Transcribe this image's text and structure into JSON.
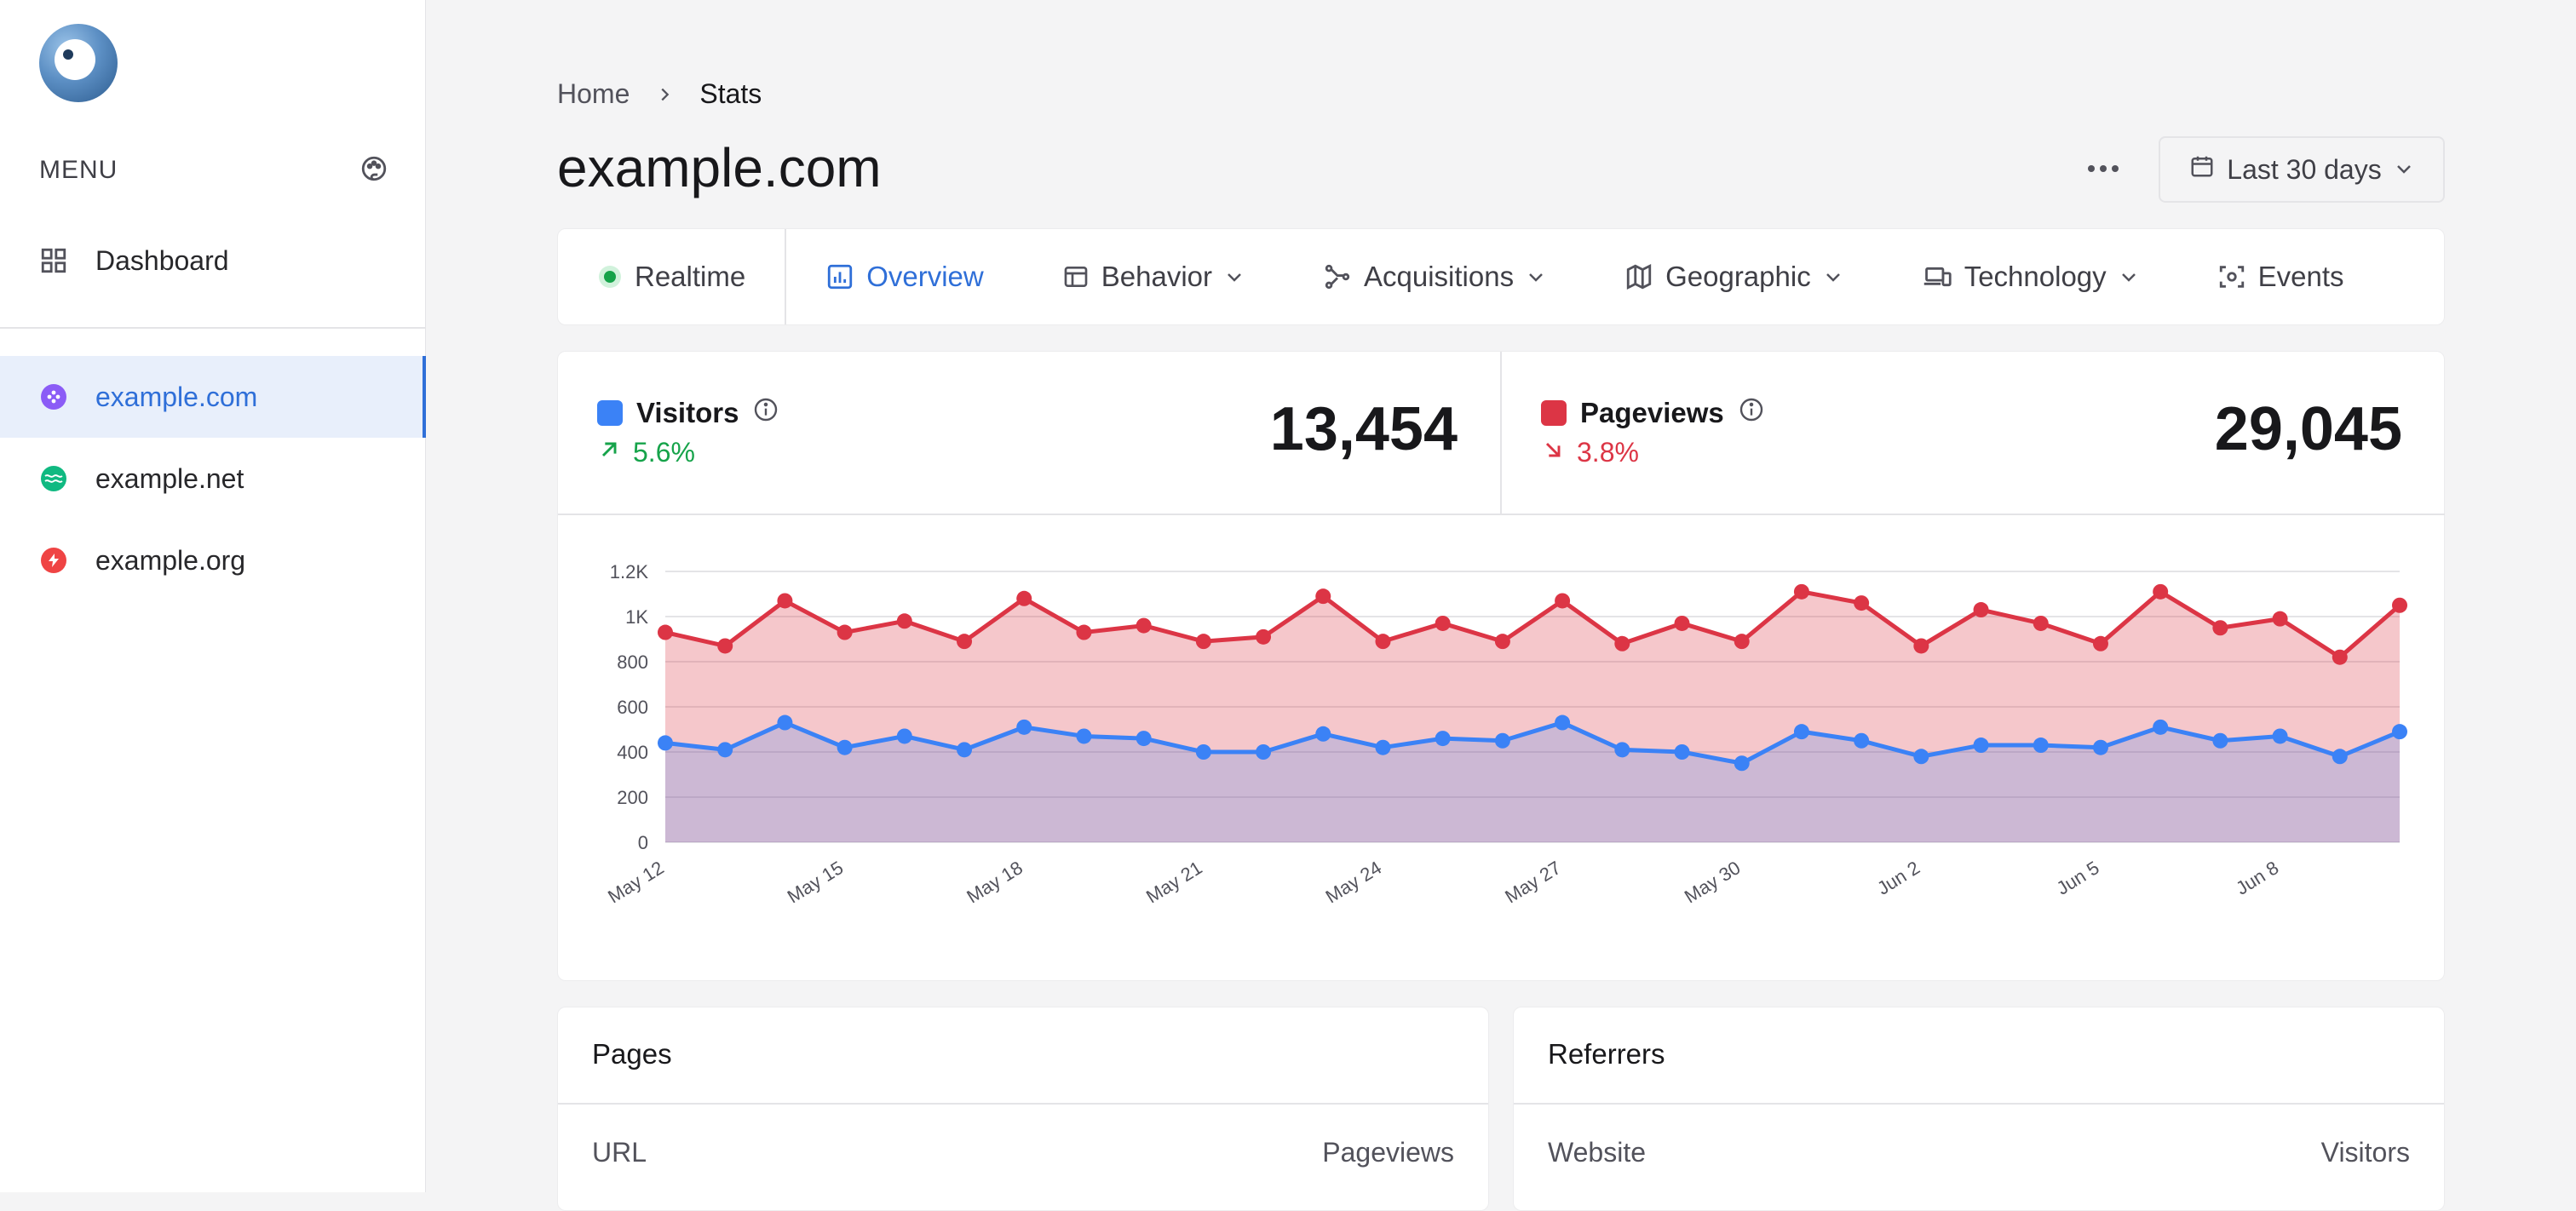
{
  "sidebar": {
    "menu_label": "MENU",
    "dashboard_label": "Dashboard",
    "sites": [
      {
        "label": "example.com",
        "color": "#8b5cf6",
        "active": true
      },
      {
        "label": "example.net",
        "color": "#10b981",
        "active": false
      },
      {
        "label": "example.org",
        "color": "#ef4444",
        "active": false
      }
    ]
  },
  "header": {
    "breadcrumb": [
      "Home",
      "Stats"
    ],
    "title": "example.com",
    "date_range": "Last 30 days"
  },
  "tabs": [
    {
      "label": "Realtime",
      "icon": "live-dot-icon"
    },
    {
      "label": "Overview",
      "icon": "bar-chart-icon",
      "active": true
    },
    {
      "label": "Behavior",
      "icon": "window-icon",
      "dropdown": true
    },
    {
      "label": "Acquisitions",
      "icon": "share-nodes-icon",
      "dropdown": true
    },
    {
      "label": "Geographic",
      "icon": "map-icon",
      "dropdown": true
    },
    {
      "label": "Technology",
      "icon": "devices-icon",
      "dropdown": true
    },
    {
      "label": "Events",
      "icon": "focus-icon"
    }
  ],
  "metrics": {
    "visitors": {
      "label": "Visitors",
      "change": "5.6%",
      "direction": "up",
      "value": "13,454",
      "color": "#3b82f6"
    },
    "pageviews": {
      "label": "Pageviews",
      "change": "3.8%",
      "direction": "down",
      "value": "29,045",
      "color": "#dc3545"
    }
  },
  "colors": {
    "accent": "#2f6fd8",
    "visitors": "#3b82f6",
    "pageviews": "#dc3545",
    "positive": "#16a34a",
    "negative": "#dc3545"
  },
  "chart_data": {
    "type": "area",
    "x": [
      "May 12",
      "May 13",
      "May 14",
      "May 15",
      "May 16",
      "May 17",
      "May 18",
      "May 19",
      "May 20",
      "May 21",
      "May 22",
      "May 23",
      "May 24",
      "May 25",
      "May 26",
      "May 27",
      "May 28",
      "May 29",
      "May 30",
      "May 31",
      "Jun 1",
      "Jun 2",
      "Jun 3",
      "Jun 4",
      "Jun 5",
      "Jun 6",
      "Jun 7",
      "Jun 8",
      "Jun 9",
      "Jun 10"
    ],
    "tick_labels": [
      "May 12",
      "May 15",
      "May 18",
      "May 21",
      "May 24",
      "May 27",
      "May 30",
      "Jun 2",
      "Jun 5",
      "Jun 8"
    ],
    "yticks": [
      "0",
      "200",
      "400",
      "600",
      "800",
      "1K",
      "1.2K"
    ],
    "ylim": [
      0,
      1200
    ],
    "grid": true,
    "series": [
      {
        "name": "Pageviews",
        "color": "#dc3545",
        "values": [
          930,
          870,
          1070,
          930,
          980,
          890,
          1080,
          930,
          960,
          890,
          910,
          1090,
          890,
          970,
          890,
          1070,
          880,
          970,
          890,
          1110,
          1060,
          870,
          1030,
          970,
          880,
          1110,
          950,
          990,
          820,
          1050
        ]
      },
      {
        "name": "Visitors",
        "color": "#3b82f6",
        "values": [
          440,
          410,
          530,
          420,
          470,
          410,
          510,
          470,
          460,
          400,
          400,
          480,
          420,
          460,
          450,
          530,
          410,
          400,
          350,
          490,
          450,
          380,
          430,
          430,
          420,
          510,
          450,
          470,
          380,
          490
        ]
      }
    ]
  },
  "panels": {
    "pages": {
      "title": "Pages",
      "col_left": "URL",
      "col_right": "Pageviews"
    },
    "referrers": {
      "title": "Referrers",
      "col_left": "Website",
      "col_right": "Visitors"
    }
  }
}
